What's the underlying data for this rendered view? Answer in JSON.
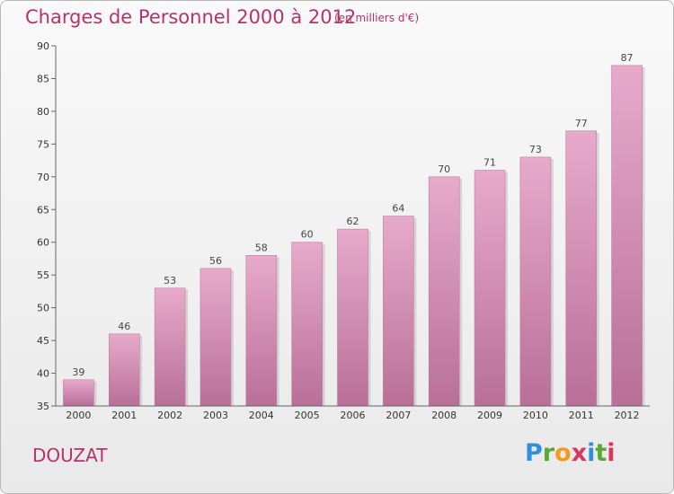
{
  "title": "Charges de Personnel 2000 à 2012",
  "subtitle": "(en milliers d'€)",
  "commune": "DOUZAT",
  "logo": {
    "letters": [
      "P",
      "r",
      "o",
      "x",
      "i",
      "t",
      "i"
    ],
    "colors": [
      "#2f8fd8",
      "#5aa832",
      "#f29b1d",
      "#d9365e",
      "#2f8fd8",
      "#5aa832",
      "#d9365e"
    ]
  },
  "colors": {
    "bar": "#cf7fac",
    "bar_light": "#e3a6c8",
    "title": "#b5336a"
  },
  "chart_data": {
    "type": "bar",
    "title": "Charges de Personnel 2000 à 2012",
    "subtitle": "(en milliers d'€)",
    "categories": [
      "2000",
      "2001",
      "2002",
      "2003",
      "2004",
      "2005",
      "2006",
      "2007",
      "2008",
      "2009",
      "2010",
      "2011",
      "2012"
    ],
    "values": [
      39,
      46,
      53,
      56,
      58,
      60,
      62,
      64,
      70,
      71,
      73,
      77,
      87
    ],
    "ylim": [
      35,
      90
    ],
    "yticks": [
      35,
      40,
      45,
      50,
      55,
      60,
      65,
      70,
      75,
      80,
      85,
      90
    ],
    "grid": false,
    "legend": "none"
  }
}
